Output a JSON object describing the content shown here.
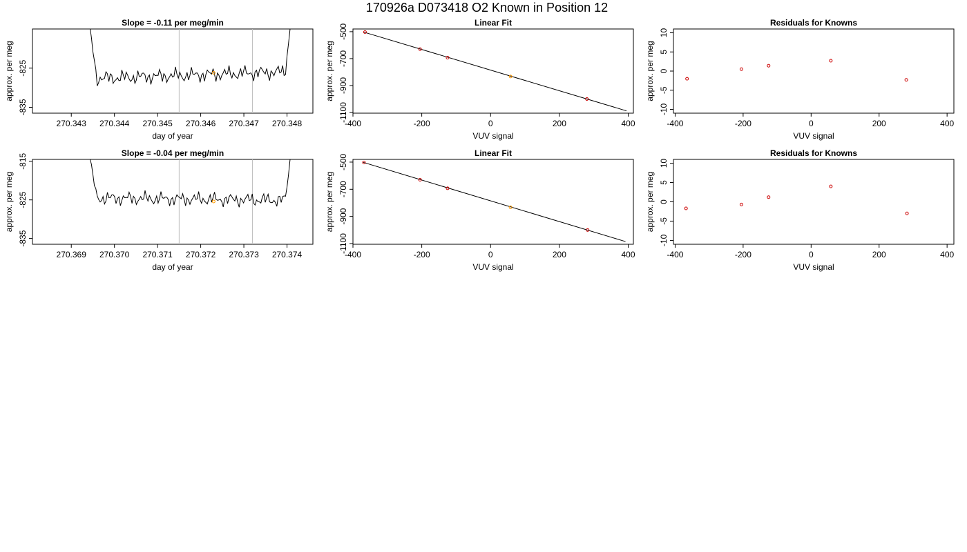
{
  "suptitle": "170926a     D073418   O2 Known in Position  12",
  "colors": {
    "line": "#000000",
    "point": "#cc0000",
    "highlight": "#ff9900",
    "vline": "#bebebe"
  },
  "chart_data": [
    {
      "type": "line",
      "title": "Slope =  -0.11  per meg/min",
      "xlabel": "day of year",
      "ylabel": "approx. per meg",
      "xlim": [
        270.3421,
        270.3486
      ],
      "ylim": [
        -836.5,
        -815
      ],
      "xticks": [
        "270.343",
        "270.344",
        "270.345",
        "270.346",
        "270.347",
        "270.348"
      ],
      "xtick_values": [
        270.343,
        270.344,
        270.345,
        270.346,
        270.347,
        270.348
      ],
      "yticks": [
        "-825",
        "-835"
      ],
      "ytick_values": [
        -825,
        -835
      ],
      "vlines": [
        270.3455,
        270.3472
      ],
      "highlight_point": {
        "x": 270.3463,
        "y": -826.2
      },
      "series": [
        {
          "x_start": 270.3434,
          "x_end": 270.3481,
          "baseline": -826.8,
          "amplitude": 1.7,
          "trend": 0.9,
          "edge_high": -812
        }
      ]
    },
    {
      "type": "scatter",
      "title": "Linear Fit",
      "xlabel": "VUV signal",
      "ylabel": "approx. per meg",
      "xlim": [
        -400,
        415
      ],
      "ylim": [
        -1105,
        -480
      ],
      "xticks": [
        "-400",
        "-200",
        "0",
        "200",
        "400"
      ],
      "xtick_values": [
        -400,
        -200,
        0,
        200,
        400
      ],
      "yticks": [
        "-500",
        "-700",
        "-900",
        "-1100"
      ],
      "ytick_values": [
        -500,
        -700,
        -900,
        -1100
      ],
      "fit_line": {
        "x": [
          -370,
          395
        ],
        "y": [
          -502,
          -1088
        ]
      },
      "points": {
        "x": [
          -365,
          -205,
          -125,
          58,
          280
        ],
        "y": [
          -503,
          -630,
          -693,
          -833,
          -1000
        ]
      },
      "highlight_index": 3
    },
    {
      "type": "scatter",
      "title": "Residuals for Knowns",
      "xlabel": "VUV signal",
      "ylabel": "approx. per meg",
      "xlim": [
        -405,
        420
      ],
      "ylim": [
        -11,
        11
      ],
      "xticks": [
        "-400",
        "-200",
        "0",
        "200",
        "400"
      ],
      "xtick_values": [
        -400,
        -200,
        0,
        200,
        400
      ],
      "yticks": [
        "10",
        "5",
        "0",
        "-5",
        "-10"
      ],
      "ytick_values": [
        10,
        5,
        0,
        -5,
        -10
      ],
      "points": {
        "x": [
          -365,
          -205,
          -125,
          58,
          280
        ],
        "y": [
          -2.0,
          0.5,
          1.4,
          2.7,
          -2.3
        ]
      }
    },
    {
      "type": "line",
      "title": "Slope =  -0.04  per meg/min",
      "xlabel": "day of year",
      "ylabel": "approx. per meg",
      "xlim": [
        270.3681,
        270.3746
      ],
      "ylim": [
        -836.5,
        -814.5
      ],
      "xticks": [
        "270.369",
        "270.370",
        "270.371",
        "270.372",
        "270.373",
        "270.374"
      ],
      "xtick_values": [
        270.369,
        270.37,
        270.371,
        270.372,
        270.373,
        270.374
      ],
      "yticks": [
        "-815",
        "-825",
        "-835"
      ],
      "ytick_values": [
        -815,
        -825,
        -835
      ],
      "vlines": [
        270.3715,
        270.3732
      ],
      "highlight_point": {
        "x": 270.3723,
        "y": -825.4
      },
      "series": [
        {
          "x_start": 270.3694,
          "x_end": 270.3741,
          "baseline": -824.8,
          "amplitude": 1.6,
          "trend": -0.3,
          "edge_high": -812
        }
      ]
    },
    {
      "type": "scatter",
      "title": "Linear Fit",
      "xlabel": "VUV signal",
      "ylabel": "approx. per meg",
      "xlim": [
        -400,
        415
      ],
      "ylim": [
        -1105,
        -480
      ],
      "xticks": [
        "-400",
        "-200",
        "0",
        "200",
        "400"
      ],
      "xtick_values": [
        -400,
        -200,
        0,
        200,
        400
      ],
      "yticks": [
        "-500",
        "-700",
        "-900",
        "-1100"
      ],
      "ytick_values": [
        -500,
        -700,
        -900,
        -1100
      ],
      "fit_line": {
        "x": [
          -370,
          392
        ],
        "y": [
          -502,
          -1085
        ]
      },
      "points": {
        "x": [
          -368,
          -205,
          -125,
          58,
          282
        ],
        "y": [
          -503,
          -630,
          -693,
          -833,
          -1000
        ]
      },
      "highlight_index": 3
    },
    {
      "type": "scatter",
      "title": "Residuals for Knowns",
      "xlabel": "VUV signal",
      "ylabel": "approx. per meg",
      "xlim": [
        -405,
        420
      ],
      "ylim": [
        -11,
        11
      ],
      "xticks": [
        "-400",
        "-200",
        "0",
        "200",
        "400"
      ],
      "xtick_values": [
        -400,
        -200,
        0,
        200,
        400
      ],
      "yticks": [
        "10",
        "5",
        "0",
        "-5",
        "-10"
      ],
      "ytick_values": [
        10,
        5,
        0,
        -5,
        -10
      ],
      "points": {
        "x": [
          -368,
          -205,
          -125,
          58,
          282
        ],
        "y": [
          -1.7,
          -0.7,
          1.2,
          4.0,
          -3.0
        ]
      }
    }
  ]
}
